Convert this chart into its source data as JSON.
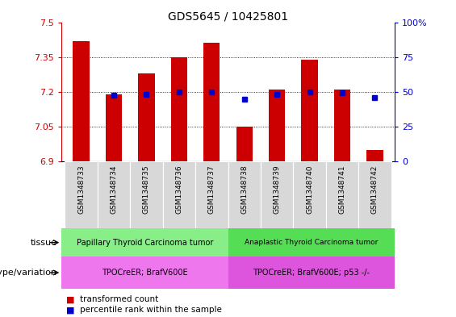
{
  "title": "GDS5645 / 10425801",
  "samples": [
    "GSM1348733",
    "GSM1348734",
    "GSM1348735",
    "GSM1348736",
    "GSM1348737",
    "GSM1348738",
    "GSM1348739",
    "GSM1348740",
    "GSM1348741",
    "GSM1348742"
  ],
  "red_values": [
    7.42,
    7.19,
    7.28,
    7.35,
    7.41,
    7.05,
    7.21,
    7.34,
    7.21,
    6.95
  ],
  "blue_values": [
    null,
    7.185,
    7.19,
    7.2,
    7.2,
    7.17,
    7.19,
    7.2,
    7.195,
    7.175
  ],
  "ylim_left": [
    6.9,
    7.5
  ],
  "ylim_right": [
    0,
    100
  ],
  "yticks_left": [
    6.9,
    7.05,
    7.2,
    7.35,
    7.5
  ],
  "yticks_right": [
    0,
    25,
    50,
    75,
    100
  ],
  "ytick_labels_left": [
    "6.9",
    "7.05",
    "7.2",
    "7.35",
    "7.5"
  ],
  "ytick_labels_right": [
    "0",
    "25",
    "50",
    "75",
    "100%"
  ],
  "bar_base": 6.9,
  "bar_color": "#cc0000",
  "dot_color": "#0000cc",
  "tissue_groups": [
    {
      "label": "Papillary Thyroid Carcinoma tumor",
      "start": 0,
      "end": 4,
      "color": "#88ee88"
    },
    {
      "label": "Anaplastic Thyroid Carcinoma tumor",
      "start": 5,
      "end": 9,
      "color": "#55dd55"
    }
  ],
  "genotype_groups": [
    {
      "label": "TPOCreER; BrafV600E",
      "start": 0,
      "end": 4,
      "color": "#ee77ee"
    },
    {
      "label": "TPOCreER; BrafV600E; p53 -/-",
      "start": 5,
      "end": 9,
      "color": "#dd55dd"
    }
  ],
  "legend_red": "transformed count",
  "legend_blue": "percentile rank within the sample",
  "tissue_label": "tissue",
  "genotype_label": "genotype/variation",
  "sample_bg": "#d8d8d8",
  "dotted_lines": [
    7.05,
    7.2,
    7.35
  ],
  "bar_width": 0.5
}
